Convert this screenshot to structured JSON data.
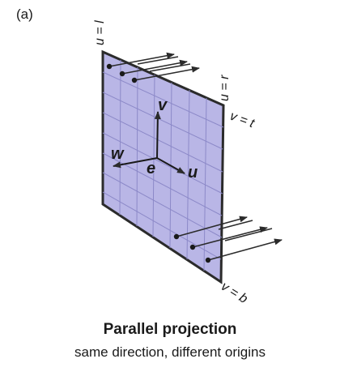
{
  "figure": {
    "panel_label": "(a)",
    "caption_title": "Parallel projection",
    "caption_subtitle": "same direction, different origins"
  },
  "labels": {
    "u_left": "u = l",
    "u_right": "u = r",
    "v_top": "v = t",
    "v_bottom": "v = b",
    "axis_v": "v",
    "axis_u": "u",
    "axis_w": "w",
    "origin_e": "e"
  },
  "colors": {
    "plane_fill": "#b9b6e6",
    "grid": "#8c89c8",
    "outline": "#2b2b2b",
    "text": "#1a1a1a"
  }
}
